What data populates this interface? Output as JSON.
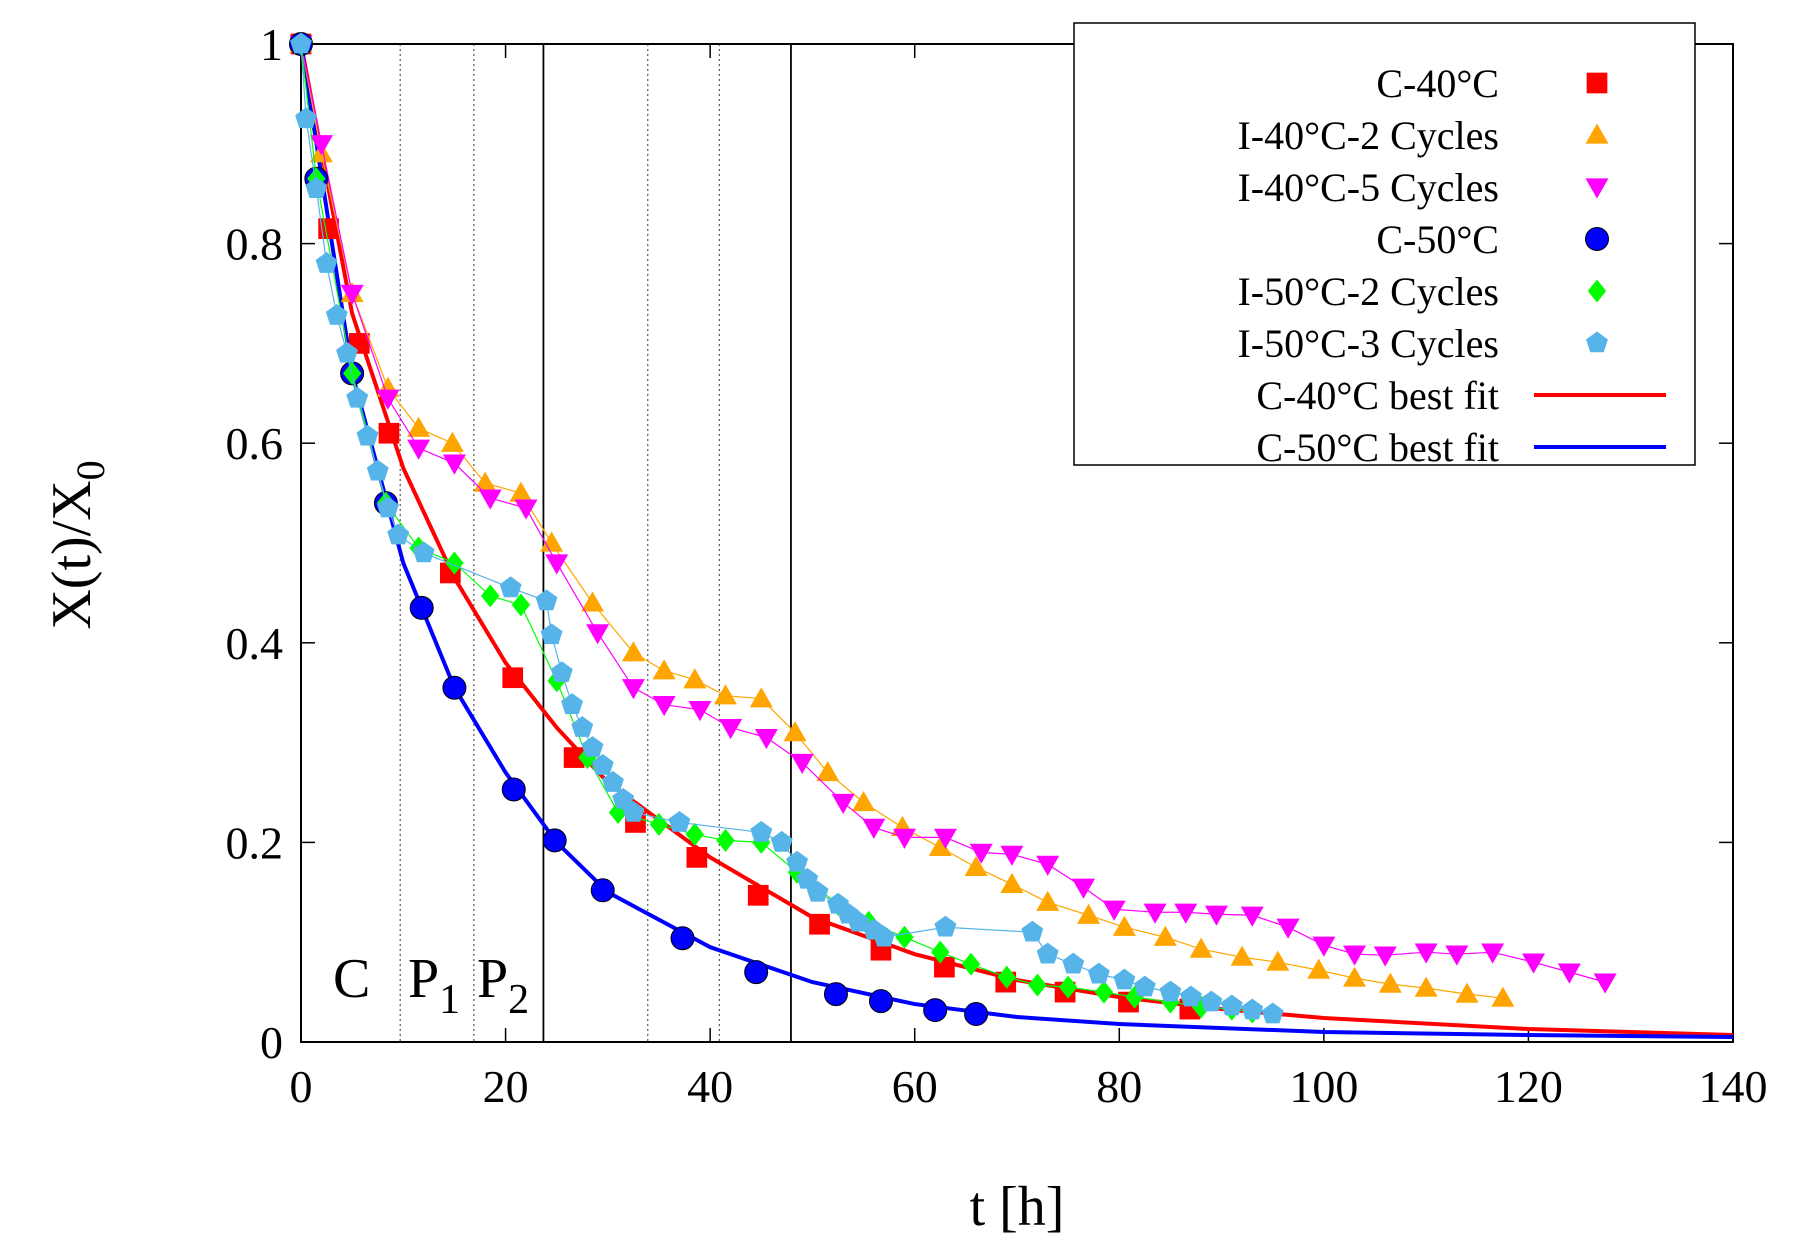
{
  "chart_data": {
    "type": "scatter",
    "xlabel": "t [h]",
    "ylabel": "X(t)/X",
    "ylabel_sub": "0",
    "xlim": [
      0,
      140
    ],
    "ylim": [
      0,
      1
    ],
    "xticks": [
      0,
      20,
      40,
      60,
      80,
      100,
      120,
      140
    ],
    "yticks": [
      0,
      0.2,
      0.4,
      0.6,
      0.8,
      1
    ],
    "legend": "upper right",
    "vlines_solid": [
      23.7,
      47.9
    ],
    "vlines_dotted": [
      9.7,
      16.9,
      33.9,
      40.9
    ],
    "annotation_parts": [
      {
        "text": "C"
      },
      {
        "text": "P",
        "sub": "1"
      },
      {
        "text": "P",
        "sub": "2"
      }
    ],
    "series": [
      {
        "name": "C-40°C",
        "color": "#ff0000",
        "marker": "square",
        "connect": false,
        "x": [
          0,
          2.7,
          5.7,
          8.6,
          14.6,
          20.7,
          26.7,
          32.7,
          38.7,
          44.7,
          50.7,
          56.7,
          62.9,
          68.9,
          74.7,
          80.9,
          86.9
        ],
        "values": [
          1,
          0.815,
          0.7,
          0.61,
          0.47,
          0.365,
          0.285,
          0.22,
          0.185,
          0.147,
          0.118,
          0.092,
          0.075,
          0.06,
          0.05,
          0.04,
          0.033
        ]
      },
      {
        "name": "I-40°C-2 Cycles",
        "color": "#ffa500",
        "marker": "triangle",
        "connect": true,
        "x": [
          0,
          2,
          5,
          8.5,
          11.5,
          14.8,
          18,
          21.5,
          24.5,
          28.5,
          32.5,
          35.5,
          38.5,
          41.5,
          45,
          48.3,
          51.5,
          55,
          58.8,
          62.5,
          66,
          69.5,
          73,
          77,
          80.5,
          84.5,
          88,
          92,
          95.5,
          99.5,
          103,
          106.5,
          110,
          114,
          117.5
        ],
        "values": [
          1,
          0.89,
          0.75,
          0.655,
          0.615,
          0.6,
          0.56,
          0.55,
          0.5,
          0.44,
          0.39,
          0.372,
          0.363,
          0.347,
          0.344,
          0.31,
          0.27,
          0.24,
          0.215,
          0.195,
          0.175,
          0.158,
          0.14,
          0.127,
          0.115,
          0.105,
          0.093,
          0.085,
          0.08,
          0.072,
          0.064,
          0.058,
          0.054,
          0.048,
          0.044
        ]
      },
      {
        "name": "I-40°C-5 Cycles",
        "color": "#ff00ff",
        "marker": "triangle-down",
        "connect": true,
        "x": [
          0,
          2,
          5,
          8.5,
          11.5,
          15,
          18.5,
          22,
          25,
          29,
          32.5,
          35.5,
          39,
          42,
          45.5,
          49,
          53,
          56,
          59,
          63,
          66.5,
          69.5,
          73,
          76.5,
          79.5,
          83.5,
          86.5,
          89.5,
          93,
          96.5,
          100,
          103,
          106,
          110,
          113,
          116.5,
          120.5,
          124,
          127.5
        ],
        "values": [
          1,
          0.9,
          0.75,
          0.645,
          0.595,
          0.58,
          0.545,
          0.535,
          0.48,
          0.41,
          0.355,
          0.338,
          0.333,
          0.315,
          0.305,
          0.28,
          0.24,
          0.215,
          0.205,
          0.205,
          0.19,
          0.188,
          0.178,
          0.155,
          0.133,
          0.13,
          0.13,
          0.128,
          0.127,
          0.115,
          0.097,
          0.088,
          0.087,
          0.09,
          0.088,
          0.09,
          0.08,
          0.07,
          0.06
        ]
      },
      {
        "name": "C-50°C",
        "color": "#0000ff",
        "marker": "circle",
        "connect": false,
        "x": [
          0,
          1.5,
          5,
          8.3,
          11.8,
          15,
          20.8,
          24.8,
          29.5,
          37.3,
          44.5,
          52.3,
          56.7,
          62,
          66
        ],
        "values": [
          1,
          0.865,
          0.67,
          0.54,
          0.435,
          0.355,
          0.253,
          0.202,
          0.152,
          0.104,
          0.07,
          0.048,
          0.041,
          0.032,
          0.028
        ]
      },
      {
        "name": "I-50°C-2 Cycles",
        "color": "#00ff00",
        "marker": "diamond",
        "connect": true,
        "x": [
          0,
          1.5,
          5,
          8.3,
          11.5,
          15,
          18.5,
          21.5,
          25,
          28,
          31,
          35,
          38.5,
          41.5,
          45,
          48.5,
          52.5,
          55.5,
          59,
          62.5,
          65.5,
          69,
          72,
          75,
          78.5,
          81.5,
          85,
          88,
          91,
          93
        ],
        "values": [
          1,
          0.865,
          0.67,
          0.54,
          0.495,
          0.48,
          0.447,
          0.438,
          0.362,
          0.285,
          0.23,
          0.218,
          0.208,
          0.202,
          0.2,
          0.17,
          0.138,
          0.12,
          0.105,
          0.09,
          0.078,
          0.065,
          0.057,
          0.055,
          0.05,
          0.045,
          0.04,
          0.035,
          0.033,
          0.03
        ]
      },
      {
        "name": "I-50°C-3 Cycles",
        "color": "#56b4e9",
        "marker": "pentagon",
        "connect": true,
        "x": [
          0,
          0.5,
          1.5,
          2.5,
          3.5,
          4.5,
          5.5,
          6.5,
          7.5,
          8.5,
          9.5,
          12,
          20.5,
          24,
          24.5,
          25.5,
          26.5,
          27.5,
          28.5,
          29.5,
          30.5,
          31.5,
          32.5,
          37,
          45,
          47,
          48.5,
          49.5,
          50.5,
          52.5,
          53.5,
          54.5,
          56,
          57,
          63,
          71.5,
          73,
          75.5,
          78,
          80.5,
          82.5,
          85,
          87,
          89,
          91,
          93,
          95
        ],
        "values": [
          1,
          0.925,
          0.855,
          0.78,
          0.728,
          0.69,
          0.645,
          0.607,
          0.572,
          0.535,
          0.508,
          0.49,
          0.455,
          0.442,
          0.408,
          0.37,
          0.338,
          0.315,
          0.295,
          0.277,
          0.26,
          0.243,
          0.23,
          0.22,
          0.21,
          0.2,
          0.18,
          0.163,
          0.15,
          0.138,
          0.128,
          0.12,
          0.112,
          0.105,
          0.115,
          0.11,
          0.088,
          0.078,
          0.068,
          0.062,
          0.055,
          0.05,
          0.045,
          0.04,
          0.036,
          0.032,
          0.028
        ]
      },
      {
        "name": "C-40°C best fit",
        "color": "#ff0000",
        "marker": "line",
        "connect": true,
        "x": [
          0,
          5,
          10,
          15,
          20,
          25,
          30,
          40,
          50,
          60,
          70,
          80,
          90,
          100,
          120,
          140
        ],
        "values": [
          1,
          0.73,
          0.575,
          0.465,
          0.38,
          0.315,
          0.26,
          0.185,
          0.125,
          0.088,
          0.062,
          0.045,
          0.033,
          0.024,
          0.013,
          0.007
        ]
      },
      {
        "name": "C-50°C best fit",
        "color": "#0000ff",
        "marker": "line",
        "connect": true,
        "x": [
          0,
          5,
          10,
          15,
          20,
          25,
          30,
          40,
          50,
          60,
          70,
          80,
          100,
          120,
          140
        ],
        "values": [
          1,
          0.67,
          0.48,
          0.355,
          0.27,
          0.2,
          0.15,
          0.095,
          0.06,
          0.038,
          0.025,
          0.018,
          0.01,
          0.007,
          0.005
        ]
      }
    ]
  }
}
